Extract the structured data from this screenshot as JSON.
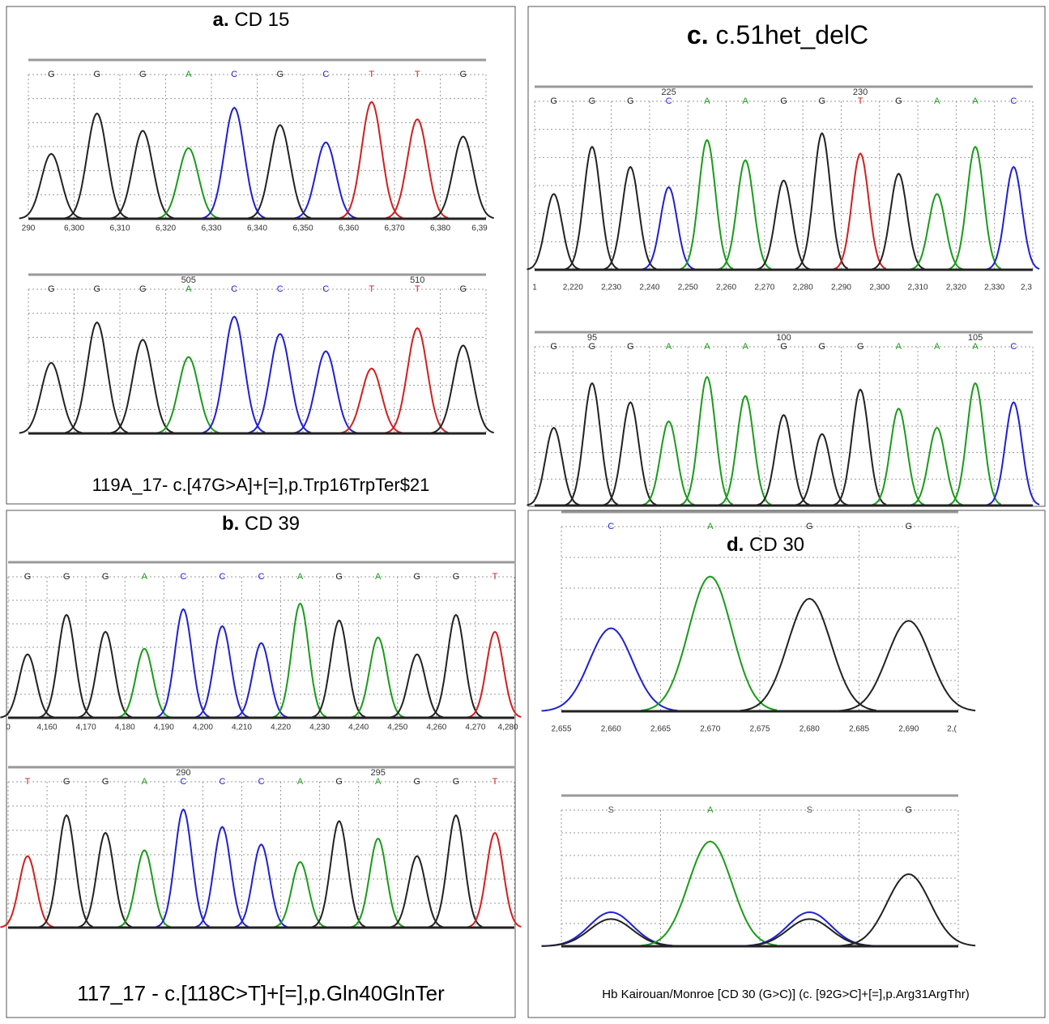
{
  "panels": [
    {
      "label": "a.",
      "title": "CD 15",
      "caption": "119A_17- c.[47G>A]+[=],p.Trp16TrpTer$21",
      "traces": [
        {
          "bases": [
            "G",
            "G",
            "G",
            "A",
            "C",
            "G",
            "C",
            "T",
            "T",
            "G"
          ],
          "marks": [
            null,
            null,
            null,
            null,
            null,
            null,
            null,
            null,
            null,
            null
          ],
          "axis": [
            "290",
            "6,300",
            "6,310",
            "6,320",
            "6,330",
            "6,340",
            "6,350",
            "6,360",
            "6,370",
            "6,380",
            "6,39"
          ]
        },
        {
          "bases": [
            "G",
            "G",
            "G",
            "A",
            "C",
            "C",
            "C",
            "T",
            "T",
            "G"
          ],
          "marks": [
            null,
            null,
            null,
            "505",
            null,
            null,
            null,
            null,
            "510",
            null
          ]
        }
      ]
    },
    {
      "label": "b.",
      "title": "CD 39",
      "caption": "117_17 - c.[118C>T]+[=],p.Gln40GlnTer",
      "traces": [
        {
          "bases": [
            "G",
            "G",
            "G",
            "A",
            "C",
            "C",
            "C",
            "A",
            "G",
            "A",
            "G",
            "G",
            "T"
          ],
          "marks": [
            null,
            null,
            null,
            null,
            null,
            null,
            null,
            null,
            null,
            null,
            null,
            null,
            null
          ],
          "axis": [
            "0",
            "4,160",
            "4,170",
            "4,180",
            "4,190",
            "4,200",
            "4,210",
            "4,220",
            "4,230",
            "4,240",
            "4,250",
            "4,260",
            "4,270",
            "4,280"
          ]
        },
        {
          "bases": [
            "T",
            "G",
            "G",
            "A",
            "C",
            "C",
            "C",
            "A",
            "G",
            "A",
            "G",
            "G",
            "T"
          ],
          "marks": [
            null,
            null,
            null,
            null,
            "290",
            null,
            null,
            null,
            null,
            "295",
            null,
            null,
            null
          ]
        }
      ]
    },
    {
      "label": "c.",
      "title": "c.51het_delC",
      "caption": null,
      "traces": [
        {
          "bases": [
            "G",
            "G",
            "G",
            "C",
            "A",
            "A",
            "G",
            "G",
            "T",
            "G",
            "A",
            "A",
            "C"
          ],
          "marks": [
            null,
            null,
            null,
            "225",
            null,
            null,
            null,
            null,
            "230",
            null,
            null,
            null,
            null
          ],
          "axis": [
            "1",
            "2,220",
            "2,230",
            "2,240",
            "2,250",
            "2,260",
            "2,270",
            "2,280",
            "2,290",
            "2,300",
            "2,310",
            "2,320",
            "2,330",
            "2,3"
          ]
        },
        {
          "bases": [
            "G",
            "G",
            "G",
            "A",
            "A",
            "A",
            "G",
            "G",
            "G",
            "A",
            "A",
            "A",
            "C"
          ],
          "marks": [
            null,
            "95",
            null,
            null,
            null,
            null,
            "100",
            null,
            null,
            null,
            null,
            "105",
            null
          ]
        }
      ]
    },
    {
      "label": "d.",
      "title": "CD 30",
      "caption": "Hb Kairouan/Monroe [CD 30 (G>C)] (c. [92G>C]+[=],p.Arg31ArgThr)",
      "traces": [
        {
          "bases": [
            "C",
            "A",
            "G",
            "G"
          ],
          "marks": [
            null,
            null,
            null,
            null
          ],
          "axis": [
            "2,655",
            "2,660",
            "2,665",
            "2,670",
            "2,675",
            "2,680",
            "2,685",
            "2,690",
            "2,("
          ]
        },
        {
          "bases": [
            "S",
            "A",
            "S",
            "G"
          ],
          "marks": [
            null,
            null,
            null,
            null
          ]
        }
      ]
    }
  ]
}
